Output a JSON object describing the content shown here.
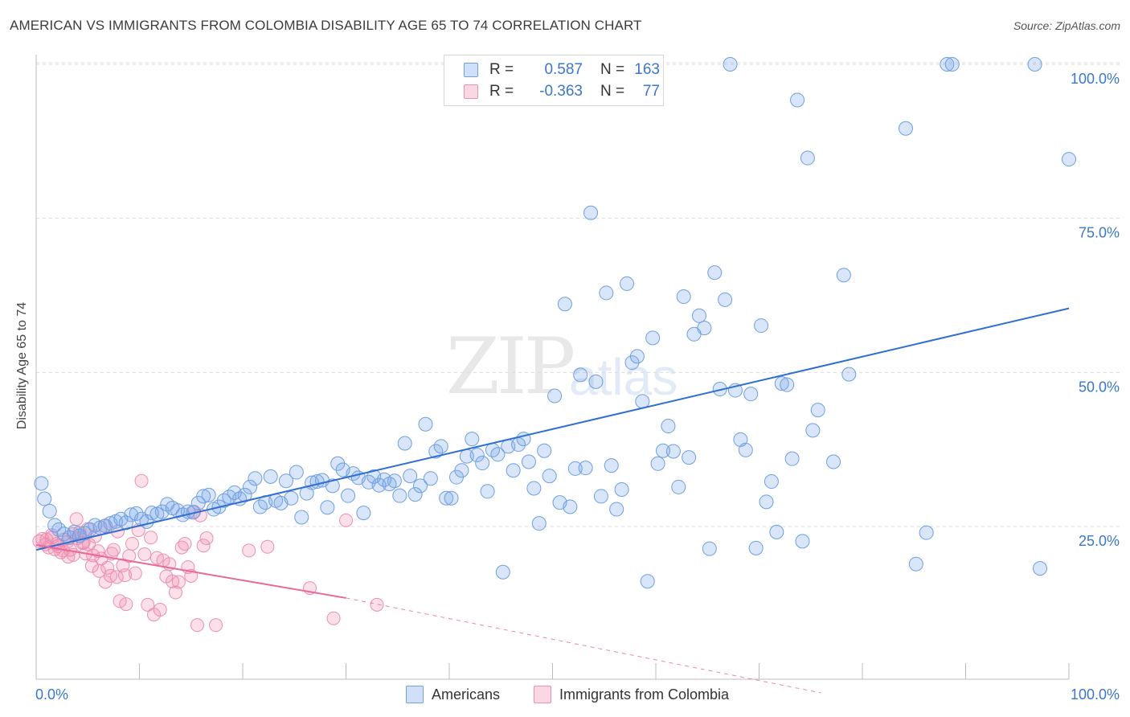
{
  "title": "AMERICAN VS IMMIGRANTS FROM COLOMBIA DISABILITY AGE 65 TO 74 CORRELATION CHART",
  "source": "Source: ZipAtlas.com",
  "watermark": {
    "zip": "ZIP",
    "atlas": "atlas"
  },
  "legend": {
    "row1": {
      "r_label": "R =",
      "r_value": "0.587",
      "n_label": "N =",
      "n_value": "163"
    },
    "row2": {
      "r_label": "R =",
      "r_value": "-0.363",
      "n_label": "N =",
      "n_value": "77"
    }
  },
  "bottom_legend": {
    "series1": "Americans",
    "series2": "Immigrants from Colombia"
  },
  "colors": {
    "blue_fill": "rgba(120,165,235,0.28)",
    "blue_stroke": "#6f9fe0",
    "blue_line": "#2f6fd0",
    "pink_fill": "rgba(240,140,175,0.28)",
    "pink_stroke": "#ec8fb0",
    "pink_line": "#e8689a",
    "tick_text": "#3a77cc",
    "grid": "#dcdcdc"
  },
  "chart_data": {
    "type": "scatter",
    "title": "AMERICAN VS IMMIGRANTS FROM COLOMBIA DISABILITY AGE 65 TO 74 CORRELATION CHART",
    "xlabel": "",
    "ylabel": "Disability Age 65 to 74",
    "x_tick_labels": [
      "0.0%",
      "100.0%"
    ],
    "y_tick_labels": [
      "25.0%",
      "50.0%",
      "75.0%",
      "100.0%"
    ],
    "y_ticks": [
      25,
      50,
      75,
      100
    ],
    "xlim": [
      0,
      100
    ],
    "ylim": [
      -2,
      102
    ],
    "grid": "horizontal dashed",
    "legend": "top-center",
    "series": [
      {
        "name": "Americans",
        "r": 0.587,
        "n": 163,
        "trend": {
          "x": [
            0,
            100
          ],
          "y": [
            21.2,
            60.4
          ],
          "dashed_to": null
        },
        "points": [
          [
            0.5,
            32
          ],
          [
            0.8,
            29.5
          ],
          [
            1.3,
            27.5
          ],
          [
            1.8,
            25.2
          ],
          [
            2.2,
            24.5
          ],
          [
            2.7,
            23.8
          ],
          [
            3.2,
            23.2
          ],
          [
            3.7,
            24.1
          ],
          [
            4.2,
            23.5
          ],
          [
            4.7,
            23.9
          ],
          [
            5.2,
            24.5
          ],
          [
            5.7,
            25.2
          ],
          [
            6.2,
            24.8
          ],
          [
            6.7,
            25.1
          ],
          [
            7.2,
            25.5
          ],
          [
            7.7,
            25.8
          ],
          [
            8.2,
            26.2
          ],
          [
            8.7,
            25.6
          ],
          [
            9.2,
            26.9
          ],
          [
            9.7,
            27.1
          ],
          [
            10.2,
            26.2
          ],
          [
            10.7,
            25.8
          ],
          [
            11.2,
            27.2
          ],
          [
            11.7,
            27.0
          ],
          [
            12.2,
            27.4
          ],
          [
            12.7,
            28.6
          ],
          [
            13.2,
            28.0
          ],
          [
            13.7,
            27.6
          ],
          [
            14.2,
            26.9
          ],
          [
            14.7,
            27.4
          ],
          [
            15.2,
            27.3
          ],
          [
            15.7,
            28.8
          ],
          [
            16.2,
            29.9
          ],
          [
            16.7,
            30.1
          ],
          [
            17.2,
            27.8
          ],
          [
            17.7,
            28.2
          ],
          [
            18.2,
            29.2
          ],
          [
            18.7,
            29.8
          ],
          [
            19.2,
            30.5
          ],
          [
            19.7,
            29.5
          ],
          [
            20.2,
            30.1
          ],
          [
            20.7,
            31.4
          ],
          [
            21.2,
            32.8
          ],
          [
            21.7,
            28.2
          ],
          [
            22.2,
            28.9
          ],
          [
            22.7,
            33.1
          ],
          [
            23.2,
            29.2
          ],
          [
            23.7,
            28.8
          ],
          [
            24.2,
            32.4
          ],
          [
            24.7,
            29.6
          ],
          [
            25.2,
            33.8
          ],
          [
            25.7,
            26.5
          ],
          [
            26.2,
            30.4
          ],
          [
            26.7,
            32.1
          ],
          [
            27.2,
            32.3
          ],
          [
            27.7,
            32.5
          ],
          [
            28.2,
            28.1
          ],
          [
            28.7,
            31.6
          ],
          [
            29.2,
            35.2
          ],
          [
            29.7,
            34.2
          ],
          [
            30.2,
            30.0
          ],
          [
            30.7,
            33.6
          ],
          [
            31.2,
            32.9
          ],
          [
            31.7,
            27.2
          ],
          [
            32.2,
            32.2
          ],
          [
            32.7,
            33.1
          ],
          [
            33.2,
            31.7
          ],
          [
            33.7,
            32.6
          ],
          [
            34.2,
            31.9
          ],
          [
            34.7,
            32.4
          ],
          [
            35.2,
            30.0
          ],
          [
            35.7,
            38.5
          ],
          [
            36.2,
            33.2
          ],
          [
            36.7,
            30.2
          ],
          [
            37.2,
            31.6
          ],
          [
            37.7,
            41.6
          ],
          [
            38.2,
            32.8
          ],
          [
            38.7,
            37.2
          ],
          [
            39.2,
            38.0
          ],
          [
            39.7,
            29.6
          ],
          [
            40.2,
            29.6
          ],
          [
            40.7,
            33.0
          ],
          [
            41.2,
            34.1
          ],
          [
            41.7,
            36.4
          ],
          [
            42.2,
            39.2
          ],
          [
            42.7,
            36.6
          ],
          [
            43.2,
            35.3
          ],
          [
            43.7,
            30.7
          ],
          [
            44.2,
            37.4
          ],
          [
            44.7,
            36.7
          ],
          [
            45.2,
            17.6
          ],
          [
            45.7,
            38.0
          ],
          [
            46.2,
            34.1
          ],
          [
            46.7,
            38.3
          ],
          [
            47.2,
            39.2
          ],
          [
            47.7,
            35.5
          ],
          [
            48.2,
            31.2
          ],
          [
            48.7,
            25.5
          ],
          [
            49.2,
            37.3
          ],
          [
            49.7,
            33.2
          ],
          [
            50.2,
            46.2
          ],
          [
            50.7,
            28.9
          ],
          [
            51.2,
            61.1
          ],
          [
            51.7,
            28.2
          ],
          [
            52.2,
            34.4
          ],
          [
            52.7,
            49.6
          ],
          [
            53.2,
            34.5
          ],
          [
            53.7,
            75.9
          ],
          [
            54.2,
            48.5
          ],
          [
            54.7,
            29.9
          ],
          [
            55.2,
            62.9
          ],
          [
            55.7,
            34.9
          ],
          [
            56.2,
            27.8
          ],
          [
            56.7,
            31.0
          ],
          [
            57.2,
            64.4
          ],
          [
            57.7,
            51.6
          ],
          [
            58.2,
            52.6
          ],
          [
            58.7,
            45.3
          ],
          [
            59.2,
            16.1
          ],
          [
            59.7,
            55.6
          ],
          [
            60.2,
            35.2
          ],
          [
            60.7,
            37.3
          ],
          [
            61.2,
            41.3
          ],
          [
            61.7,
            37.2
          ],
          [
            62.2,
            31.4
          ],
          [
            62.7,
            62.3
          ],
          [
            63.2,
            36.2
          ],
          [
            63.7,
            56.2
          ],
          [
            64.2,
            59.2
          ],
          [
            64.7,
            57.2
          ],
          [
            65.2,
            21.4
          ],
          [
            65.7,
            66.2
          ],
          [
            66.2,
            47.3
          ],
          [
            66.7,
            61.8
          ],
          [
            67.2,
            100.0
          ],
          [
            67.7,
            47.1
          ],
          [
            68.2,
            39.1
          ],
          [
            68.7,
            37.4
          ],
          [
            69.2,
            46.5
          ],
          [
            69.7,
            21.5
          ],
          [
            70.2,
            57.6
          ],
          [
            70.7,
            29.0
          ],
          [
            71.2,
            32.3
          ],
          [
            71.7,
            24.1
          ],
          [
            72.2,
            48.2
          ],
          [
            72.7,
            48.0
          ],
          [
            73.2,
            36.0
          ],
          [
            73.7,
            94.2
          ],
          [
            74.2,
            22.6
          ],
          [
            74.7,
            84.8
          ],
          [
            75.2,
            40.6
          ],
          [
            75.7,
            43.9
          ],
          [
            77.2,
            35.5
          ],
          [
            78.2,
            65.8
          ],
          [
            78.7,
            49.7
          ],
          [
            84.2,
            89.6
          ],
          [
            85.2,
            18.9
          ],
          [
            86.2,
            24.0
          ],
          [
            88.2,
            100.0
          ],
          [
            88.7,
            100.0
          ],
          [
            96.7,
            100.0
          ],
          [
            97.2,
            18.2
          ],
          [
            100.0,
            84.6
          ]
        ]
      },
      {
        "name": "Immigrants from Colombia",
        "r": -0.363,
        "n": 77,
        "trend": {
          "x": [
            0,
            30
          ],
          "y": [
            22.0,
            13.4
          ],
          "dashed_to": [
            76,
            -2
          ]
        },
        "points": [
          [
            0.3,
            22.6
          ],
          [
            0.6,
            23.0
          ],
          [
            0.9,
            22.1
          ],
          [
            1.2,
            21.6
          ],
          [
            1.5,
            23.2
          ],
          [
            1.8,
            21.3
          ],
          [
            2.1,
            21.8
          ],
          [
            2.4,
            20.8
          ],
          [
            2.7,
            22.9
          ],
          [
            3.0,
            22.5
          ],
          [
            3.3,
            21.2
          ],
          [
            3.6,
            23.8
          ],
          [
            3.9,
            26.2
          ],
          [
            4.2,
            24.0
          ],
          [
            4.5,
            22.3
          ],
          [
            4.8,
            20.6
          ],
          [
            5.1,
            22.1
          ],
          [
            5.4,
            18.6
          ],
          [
            5.7,
            23.4
          ],
          [
            6.0,
            21.0
          ],
          [
            6.3,
            19.8
          ],
          [
            6.6,
            25.1
          ],
          [
            6.9,
            18.3
          ],
          [
            7.2,
            17.0
          ],
          [
            7.5,
            21.2
          ],
          [
            7.8,
            16.8
          ],
          [
            8.1,
            12.9
          ],
          [
            8.4,
            18.7
          ],
          [
            8.7,
            12.4
          ],
          [
            9.0,
            20.2
          ],
          [
            9.3,
            22.2
          ],
          [
            9.6,
            17.4
          ],
          [
            9.9,
            24.4
          ],
          [
            10.2,
            32.4
          ],
          [
            10.5,
            20.5
          ],
          [
            10.8,
            12.3
          ],
          [
            11.1,
            23.2
          ],
          [
            11.4,
            10.7
          ],
          [
            11.7,
            19.9
          ],
          [
            12.0,
            11.5
          ],
          [
            12.3,
            19.5
          ],
          [
            12.6,
            16.9
          ],
          [
            12.9,
            18.9
          ],
          [
            13.2,
            16.1
          ],
          [
            13.5,
            14.3
          ],
          [
            13.8,
            16.0
          ],
          [
            14.1,
            21.6
          ],
          [
            14.4,
            22.2
          ],
          [
            14.7,
            18.4
          ],
          [
            15.0,
            17.0
          ],
          [
            15.3,
            27.4
          ],
          [
            15.6,
            9.0
          ],
          [
            15.9,
            26.8
          ],
          [
            16.2,
            21.9
          ],
          [
            16.5,
            23.1
          ],
          [
            17.4,
            9.0
          ],
          [
            20.6,
            21.1
          ],
          [
            22.4,
            21.7
          ],
          [
            26.5,
            15.0
          ],
          [
            28.8,
            10.1
          ],
          [
            30.0,
            26.0
          ],
          [
            33.0,
            12.3
          ],
          [
            1.0,
            22.9
          ],
          [
            1.5,
            23.6
          ],
          [
            2.0,
            22.2
          ],
          [
            2.6,
            21.1
          ],
          [
            3.1,
            20.1
          ],
          [
            3.6,
            20.4
          ],
          [
            4.0,
            23.1
          ],
          [
            4.6,
            22.4
          ],
          [
            5.0,
            24.6
          ],
          [
            5.5,
            20.3
          ],
          [
            6.1,
            17.8
          ],
          [
            6.7,
            16.0
          ],
          [
            7.3,
            20.6
          ],
          [
            7.9,
            24.2
          ],
          [
            8.6,
            17.1
          ]
        ]
      }
    ]
  }
}
